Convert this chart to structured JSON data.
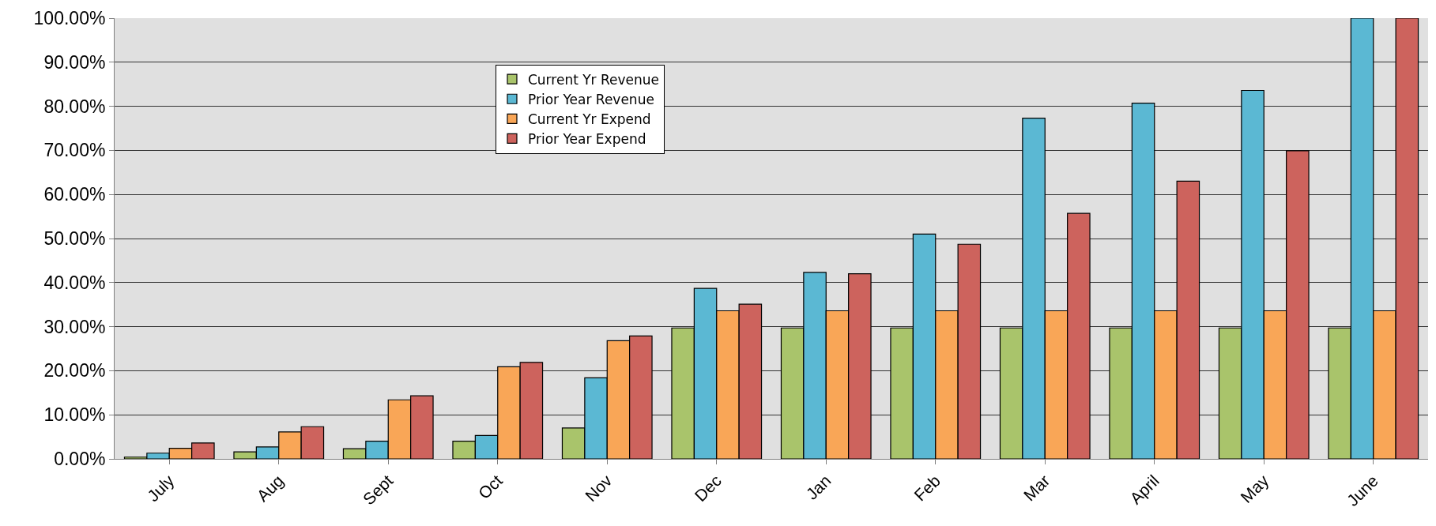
{
  "chart_data": {
    "type": "bar",
    "categories": [
      "July",
      "Aug",
      "Sept",
      "Oct",
      "Nov",
      "Dec",
      "Jan",
      "Feb",
      "Mar",
      "April",
      "May",
      "June"
    ],
    "series": [
      {
        "name": "Current Yr Revenue",
        "color": "#a9c46b",
        "values": [
          0.4,
          1.6,
          2.3,
          4.0,
          7.0,
          29.7,
          29.7,
          29.7,
          29.7,
          29.7,
          29.7,
          29.7
        ]
      },
      {
        "name": "Prior Year Revenue",
        "color": "#5bb8d3",
        "values": [
          1.3,
          2.7,
          4.0,
          5.3,
          18.4,
          38.7,
          42.3,
          51.0,
          77.3,
          80.7,
          83.6,
          100
        ]
      },
      {
        "name": "Current Yr Expend",
        "color": "#f9a657",
        "values": [
          2.4,
          6.1,
          13.4,
          20.9,
          26.8,
          33.6,
          33.6,
          33.6,
          33.6,
          33.6,
          33.6,
          33.6
        ]
      },
      {
        "name": "Prior Year Expend",
        "color": "#cd635d",
        "values": [
          3.6,
          7.3,
          14.3,
          21.9,
          27.9,
          35.1,
          42.0,
          48.7,
          55.7,
          63.0,
          69.9,
          100
        ]
      }
    ],
    "ylim": [
      0,
      100
    ],
    "yticks": [
      {
        "value": 0,
        "label": "0.00%"
      },
      {
        "value": 10,
        "label": "10.00%"
      },
      {
        "value": 20,
        "label": "20.00%"
      },
      {
        "value": 30,
        "label": "30.00%"
      },
      {
        "value": 40,
        "label": "40.00%"
      },
      {
        "value": 50,
        "label": "50.00%"
      },
      {
        "value": 60,
        "label": "60.00%"
      },
      {
        "value": 70,
        "label": "70.00%"
      },
      {
        "value": 80,
        "label": "80.00%"
      },
      {
        "value": 90,
        "label": "90.00%"
      },
      {
        "value": 100,
        "label": "100.00%"
      }
    ],
    "grid": "y",
    "legend": "top"
  }
}
